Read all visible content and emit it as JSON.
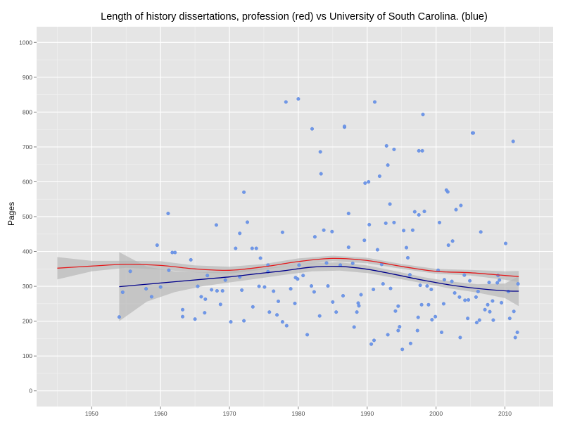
{
  "chart_data": {
    "type": "scatter",
    "title": "Length of history dissertations, profession (red) vs University of South Carolina. (blue)",
    "xlabel": "",
    "ylabel": "Pages",
    "xlim": [
      1942,
      2017
    ],
    "ylim": [
      -45,
      1045
    ],
    "xticks": [
      1950,
      1960,
      1970,
      1980,
      1990,
      2000,
      2010
    ],
    "yticks": [
      0,
      100,
      200,
      300,
      400,
      500,
      600,
      700,
      800,
      900,
      1000
    ],
    "grid": true,
    "point_color": "#6f97e8",
    "background_color": "#e5e5e5",
    "grid_color": "#ffffff",
    "band_color": "#b3b3b3",
    "series": [
      {
        "kind": "smooth",
        "color": "#e41a1c",
        "x": [
          1945,
          1950,
          1955,
          1960,
          1965,
          1970,
          1975,
          1980,
          1985,
          1990,
          1995,
          2000,
          2005,
          2010,
          2012
        ],
        "y": [
          352,
          358,
          363,
          360,
          350,
          346,
          356,
          371,
          380,
          374,
          357,
          343,
          339,
          331,
          328
        ],
        "lower": [
          320,
          343,
          353,
          348,
          340,
          336,
          348,
          362,
          372,
          366,
          350,
          336,
          331,
          319,
          312
        ],
        "upper": [
          384,
          373,
          373,
          372,
          360,
          356,
          364,
          380,
          388,
          382,
          364,
          350,
          347,
          343,
          344
        ]
      },
      {
        "kind": "smooth",
        "color": "#00008b",
        "x": [
          1954,
          1958,
          1962,
          1966,
          1970,
          1974,
          1978,
          1982,
          1986,
          1990,
          1994,
          1998,
          2002,
          2006,
          2010,
          2012
        ],
        "y": [
          299,
          306,
          313,
          320,
          327,
          336,
          345,
          355,
          357,
          349,
          334,
          318,
          304,
          294,
          287,
          286
        ],
        "lower": [
          200,
          256,
          283,
          300,
          311,
          322,
          333,
          343,
          345,
          338,
          324,
          309,
          294,
          282,
          266,
          243
        ],
        "upper": [
          398,
          356,
          343,
          340,
          343,
          350,
          357,
          367,
          369,
          360,
          344,
          327,
          314,
          306,
          308,
          329
        ]
      },
      {
        "kind": "points",
        "x": [
          1954,
          1954.5,
          1955.6,
          1957.9,
          1958.7,
          1959.5,
          1961.1,
          1961.7,
          1962.1,
          1963.2,
          1964.4,
          1965.0,
          1965.4,
          1965.9,
          1966.5,
          1966.8,
          1967.4,
          1968.1,
          1968.7,
          1969.4,
          1970.2,
          1970.9,
          1971.5,
          1972.1,
          1972.6,
          1973.3,
          1973.9,
          1974.5,
          1975.1,
          1975.8,
          1976.4,
          1977.1,
          1977.7,
          1978.3,
          1978.9,
          1979.5,
          1980.1,
          1980.7,
          1981.3,
          1981.9,
          1982.4,
          1983.1,
          1983.7,
          1984.3,
          1984.9,
          1985.5,
          1986.1,
          1986.7,
          1987.3,
          1987.9,
          1988.5,
          1989.1,
          1989.7,
          1990.3,
          1990.9,
          1991.5,
          1992.1,
          1992.7,
          1993.3,
          1993.9,
          1994.5,
          1995.1,
          1995.7,
          1996.3,
          1996.9,
          1997.5,
          1998.1,
          1998.7,
          1999.3,
          1999.9,
          2000.5,
          2001.1,
          2001.7,
          2002.3,
          2002.9,
          2003.5,
          2004.1,
          2004.7,
          2005.3,
          2005.9,
          2006.5,
          2007.1,
          2007.7,
          2008.3,
          2008.9,
          2009.5,
          2010.1,
          2010.7,
          2011.3,
          2011.9,
          1960.0,
          1963.2,
          1968.2,
          1971.5,
          1973.4,
          1975.6,
          1977.7,
          1979.9,
          1982.3,
          1984.1,
          1986.5,
          1988.7,
          1990.6,
          1992.3,
          1994.1,
          1995.9,
          1997.4,
          1998.9,
          2000.3,
          2001.8,
          2003.4,
          2004.9,
          2006.3,
          2007.8,
          2009.2,
          2010.5,
          1978.2,
          1980.0,
          1982.0,
          1983.2,
          1986.7,
          1991.1,
          1993.0,
          1998.0,
          2005.4,
          2011.2,
          1983.3,
          1987.3,
          1989.6,
          1990.2,
          1991.8,
          1992.8,
          1993.9,
          1995.3,
          1996.6,
          1997.5,
          1998.3,
          2001.5,
          2002.4,
          2003.6,
          1961.2,
          1972.1,
          1975.6,
          1988.8,
          1993.0,
          1997.7,
          2006.1,
          2011.5,
          1993.4,
          1994.7,
          1996.2,
          1997.3,
          1999.4,
          2000.8,
          2002.7,
          2004.2,
          2005.8,
          2007.5,
          2009.0,
          2011.8,
          1966.4,
          1969.0,
          1971.8,
          1974.3,
          1976.9,
          1979.6,
          1985.0,
          1988.1,
          1991.0,
          1994.5,
          1997.9,
          2001.2,
          2004.6,
          2008.2
        ],
        "y": [
          212,
          283,
          343,
          293,
          270,
          418,
          509,
          397,
          397,
          213,
          376,
          206,
          300,
          270,
          263,
          331,
          290,
          476,
          248,
          318,
          198,
          409,
          452,
          570,
          484,
          409,
          409,
          381,
          298,
          226,
          286,
          257,
          455,
          187,
          293,
          251,
          361,
          331,
          161,
          301,
          442,
          215,
          461,
          301,
          457,
          226,
          361,
          757,
          509,
          366,
          226,
          276,
          596,
          477,
          291,
          405,
          363,
          481,
          536,
          693,
          243,
          119,
          411,
          136,
          514,
          689,
          793,
          301,
          291,
          213,
          483,
          250,
          571,
          314,
          520,
          153,
          332,
          261,
          740,
          196,
          456,
          233,
          311,
          203,
          310,
          253,
          423,
          208,
          228,
          307,
          298,
          233,
          287,
          327,
          241,
          342,
          198,
          321,
          284,
          367,
          273,
          252,
          134,
          307,
          229,
          382,
          211,
          247,
          346,
          418,
          269,
          316,
          203,
          227,
          318,
          285,
          829,
          838,
          752,
          686,
          759,
          829,
          648,
          689,
          740,
          716,
          623,
          412,
          432,
          600,
          616,
          703,
          483,
          460,
          461,
          505,
          515,
          576,
          430,
          532,
          346,
          201,
          361,
          244,
          161,
          303,
          285,
          153,
          294,
          184,
          333,
          173,
          204,
          168,
          281,
          260,
          269,
          247,
          331,
          168,
          224,
          287,
          289,
          300,
          218,
          325,
          255,
          183,
          145,
          173,
          247,
          319,
          208,
          258
        ]
      }
    ]
  }
}
